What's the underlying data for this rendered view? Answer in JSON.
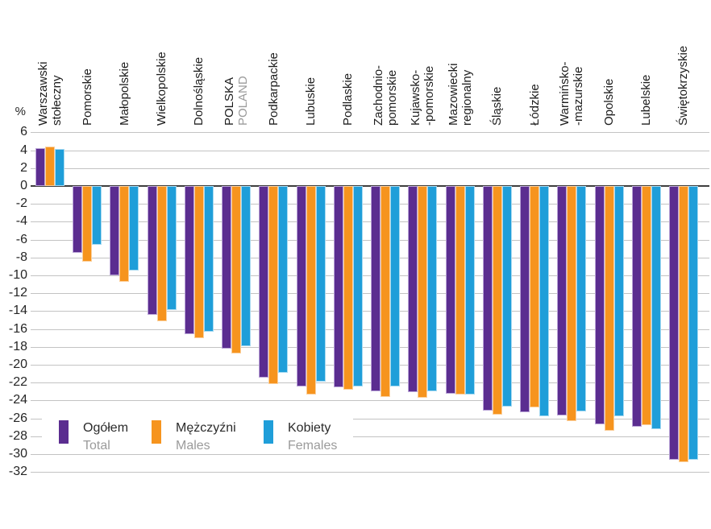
{
  "chart_data": {
    "type": "bar",
    "unit_label": "%",
    "y_axis": {
      "ticks": [
        6,
        4,
        2,
        0,
        -2,
        -4,
        -6,
        -8,
        -10,
        -12,
        -14,
        -16,
        -18,
        -20,
        -22,
        -24,
        -26,
        -28,
        -30,
        -32
      ],
      "broken_ticks": [
        -26,
        -28
      ],
      "ylim": [
        -32,
        6
      ],
      "grid": "on",
      "zero_line": true
    },
    "categories": [
      {
        "lines": [
          "Warszawski",
          "stołeczny"
        ],
        "secondary_gray": false
      },
      {
        "lines": [
          "Pomorskie"
        ],
        "secondary_gray": false
      },
      {
        "lines": [
          "Małopolskie"
        ],
        "secondary_gray": false
      },
      {
        "lines": [
          "Wielkopolskie"
        ],
        "secondary_gray": false
      },
      {
        "lines": [
          "Dolnośląskie"
        ],
        "secondary_gray": false
      },
      {
        "lines": [
          "POLSKA",
          "POLAND"
        ],
        "secondary_gray": true
      },
      {
        "lines": [
          "Podkarpackie"
        ],
        "secondary_gray": false
      },
      {
        "lines": [
          "Lubuskie"
        ],
        "secondary_gray": false
      },
      {
        "lines": [
          "Podlaskie"
        ],
        "secondary_gray": false
      },
      {
        "lines": [
          "Zachodnio-",
          "pomorskie"
        ],
        "secondary_gray": false
      },
      {
        "lines": [
          "Kujawsko-",
          "-pomorskie"
        ],
        "secondary_gray": false
      },
      {
        "lines": [
          "Mazowiecki",
          "regionalny"
        ],
        "secondary_gray": false
      },
      {
        "lines": [
          "Śląskie"
        ],
        "secondary_gray": false
      },
      {
        "lines": [
          "Łódzkie"
        ],
        "secondary_gray": false
      },
      {
        "lines": [
          "Warmińsko-",
          "-mazurskie"
        ],
        "secondary_gray": false
      },
      {
        "lines": [
          "Opolskie"
        ],
        "secondary_gray": false
      },
      {
        "lines": [
          "Lubelskie"
        ],
        "secondary_gray": false
      },
      {
        "lines": [
          "Świętokrzyskie"
        ],
        "secondary_gray": false
      }
    ],
    "series": [
      {
        "name": "Ogółem / Total",
        "color": "#5b2d90",
        "edge_color": "#bba6d8",
        "values": [
          4.2,
          -7.5,
          -10.0,
          -14.4,
          -16.6,
          -18.2,
          -21.4,
          -22.4,
          -22.5,
          -23.0,
          -23.1,
          -23.2,
          -25.1,
          -25.3,
          -25.7,
          -26.7,
          -26.9,
          -30.6
        ]
      },
      {
        "name": "Mężczyźni / Males",
        "color": "#f6941e",
        "edge_color": "#fbd09d",
        "values": [
          4.4,
          -8.5,
          -10.7,
          -15.1,
          -17.0,
          -18.7,
          -22.2,
          -23.3,
          -22.8,
          -23.6,
          -23.7,
          -23.3,
          -25.6,
          -24.8,
          -26.3,
          -27.4,
          -26.8,
          -30.9
        ]
      },
      {
        "name": "Kobiety / Females",
        "color": "#1f9ed9",
        "edge_color": "#a5d9f1",
        "values": [
          4.1,
          -6.6,
          -9.5,
          -13.9,
          -16.3,
          -17.9,
          -20.9,
          -21.9,
          -22.4,
          -22.4,
          -23.0,
          -23.3,
          -24.7,
          -25.8,
          -25.2,
          -25.8,
          -27.2,
          -30.6
        ]
      }
    ],
    "legend": [
      {
        "label": "Ogółem",
        "sublabel": "Total"
      },
      {
        "label": "Mężczyźni",
        "sublabel": "Males"
      },
      {
        "label": "Kobiety",
        "sublabel": "Females"
      }
    ],
    "legend_position": "bottom-left-inside",
    "text_colors": {
      "primary": "#1d1d1d",
      "secondary": "#9b9b9b"
    }
  }
}
